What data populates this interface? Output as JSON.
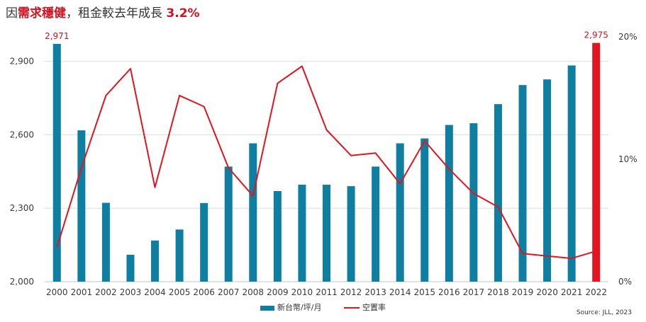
{
  "title": {
    "prefix": "因",
    "highlight": "需求穩健",
    "middle": "，租金較去年成長 ",
    "percent": "3.2%"
  },
  "colors": {
    "bar": "#0e7fa1",
    "bar_highlight": "#e3141f",
    "line": "#e3141f",
    "grid": "#d9dde2",
    "label": "#d2121f"
  },
  "chart_data": {
    "type": "bar",
    "categories": [
      "2000",
      "2001",
      "2002",
      "2003",
      "2004",
      "2005",
      "2006",
      "2007",
      "2008",
      "2009",
      "2010",
      "2011",
      "2012",
      "2013",
      "2014",
      "2015",
      "2016",
      "2017",
      "2018",
      "2019",
      "2020",
      "2021",
      "2022"
    ],
    "series": [
      {
        "name": "新台幣/坪/月",
        "type": "bar",
        "axis": "left",
        "values": [
          2971,
          2618,
          2322,
          2110,
          2168,
          2213,
          2321,
          2470,
          2565,
          2370,
          2396,
          2396,
          2390,
          2470,
          2565,
          2585,
          2640,
          2647,
          2725,
          2803,
          2826,
          2883,
          2975
        ]
      },
      {
        "name": "空置率",
        "type": "line",
        "axis": "right",
        "values": [
          2.8,
          9.3,
          15.2,
          17.4,
          7.7,
          15.2,
          14.3,
          9.3,
          7.0,
          16.2,
          17.6,
          12.4,
          10.3,
          10.5,
          8.0,
          11.5,
          9.2,
          7.2,
          6.1,
          2.3,
          2.1,
          1.9,
          2.5
        ]
      }
    ],
    "highlight_index": 22,
    "data_labels": [
      {
        "index": 0,
        "text": "2,971"
      },
      {
        "index": 22,
        "text": "2,975"
      }
    ],
    "y_left": {
      "min": 2000,
      "max": 3000,
      "ticks": [
        2000,
        2300,
        2600,
        2900
      ],
      "tick_labels": [
        "2,000",
        "2,300",
        "2,600",
        "2,900"
      ]
    },
    "y_right": {
      "min": 0,
      "max": 20,
      "ticks": [
        0,
        10,
        20
      ],
      "tick_labels": [
        "0%",
        "10%",
        "20%"
      ]
    },
    "legend_position": "bottom-center",
    "grid": true
  },
  "legend": {
    "bar_label": "新台幣/坪/月",
    "line_label": "空置率"
  },
  "source": "Source: JLL, 2023"
}
